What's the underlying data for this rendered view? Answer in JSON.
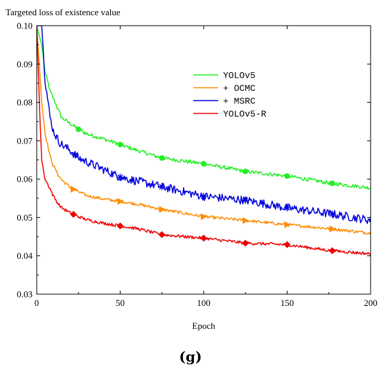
{
  "caption": "(g)",
  "chart_data": {
    "type": "line",
    "title": "",
    "ylabel": "Targeted loss of existence value",
    "xlabel": "Epoch",
    "xlim": [
      0,
      200
    ],
    "ylim": [
      0.03,
      0.1
    ],
    "xticks": [
      0,
      50,
      100,
      150,
      200
    ],
    "yticks": [
      0.03,
      0.04,
      0.05,
      0.06,
      0.07,
      0.08,
      0.09,
      0.1
    ],
    "ytick_labels": [
      "0.03",
      "0.04",
      "0.05",
      "0.06",
      "0.07",
      "0.08",
      "0.09",
      "0.10"
    ],
    "grid": false,
    "legend_position": "upper-right",
    "series": [
      {
        "name": "YOLOv5",
        "color": "#22ee22",
        "marker": "circle",
        "marker_x": [
          25,
          50,
          75,
          100,
          125,
          150,
          177
        ],
        "curve": {
          "x": [
            0,
            3,
            5,
            8,
            10,
            13,
            15,
            20,
            25,
            30,
            40,
            50,
            60,
            75,
            100,
            125,
            150,
            175,
            200
          ],
          "y": [
            0.1,
            0.095,
            0.088,
            0.083,
            0.081,
            0.078,
            0.076,
            0.0745,
            0.073,
            0.0718,
            0.0705,
            0.069,
            0.0675,
            0.0655,
            0.064,
            0.062,
            0.0608,
            0.059,
            0.0577
          ]
        }
      },
      {
        "name": "+ OCMC",
        "color": "#ff8c00",
        "marker": "triangle-right",
        "marker_x": [
          22,
          50,
          75,
          100,
          125,
          150,
          177
        ],
        "curve": {
          "x": [
            0,
            3,
            5,
            8,
            10,
            13,
            15,
            20,
            25,
            30,
            40,
            50,
            60,
            75,
            100,
            125,
            150,
            175,
            200
          ],
          "y": [
            0.1,
            0.08,
            0.072,
            0.066,
            0.0635,
            0.061,
            0.0598,
            0.0578,
            0.0567,
            0.0557,
            0.0548,
            0.0542,
            0.0535,
            0.0521,
            0.0502,
            0.0492,
            0.0481,
            0.0471,
            0.0459
          ]
        }
      },
      {
        "name": "+ MSRC",
        "color": "#0000dd",
        "marker": "star",
        "marker_x": [
          23,
          50,
          75,
          100,
          125,
          150,
          177
        ],
        "curve": {
          "x": [
            0,
            3,
            5,
            8,
            10,
            13,
            15,
            20,
            25,
            30,
            40,
            50,
            60,
            75,
            100,
            125,
            150,
            175,
            200
          ],
          "y": [
            0.1,
            0.1,
            0.086,
            0.076,
            0.0725,
            0.07,
            0.069,
            0.0675,
            0.0655,
            0.0645,
            0.0625,
            0.0605,
            0.0595,
            0.058,
            0.0555,
            0.0545,
            0.0525,
            0.051,
            0.0493
          ]
        }
      },
      {
        "name": "YOLOv5-R",
        "color": "#ee0000",
        "marker": "diamond",
        "marker_x": [
          22,
          50,
          75,
          100,
          125,
          150,
          177
        ],
        "curve": {
          "x": [
            0,
            2,
            3,
            5,
            8,
            10,
            13,
            15,
            20,
            25,
            30,
            40,
            50,
            60,
            75,
            100,
            125,
            150,
            175,
            200
          ],
          "y": [
            0.1,
            0.075,
            0.065,
            0.06,
            0.0575,
            0.0555,
            0.0535,
            0.0525,
            0.0512,
            0.0502,
            0.0494,
            0.0485,
            0.0478,
            0.0471,
            0.0455,
            0.0446,
            0.0433,
            0.0429,
            0.0414,
            0.0405
          ]
        }
      }
    ]
  }
}
